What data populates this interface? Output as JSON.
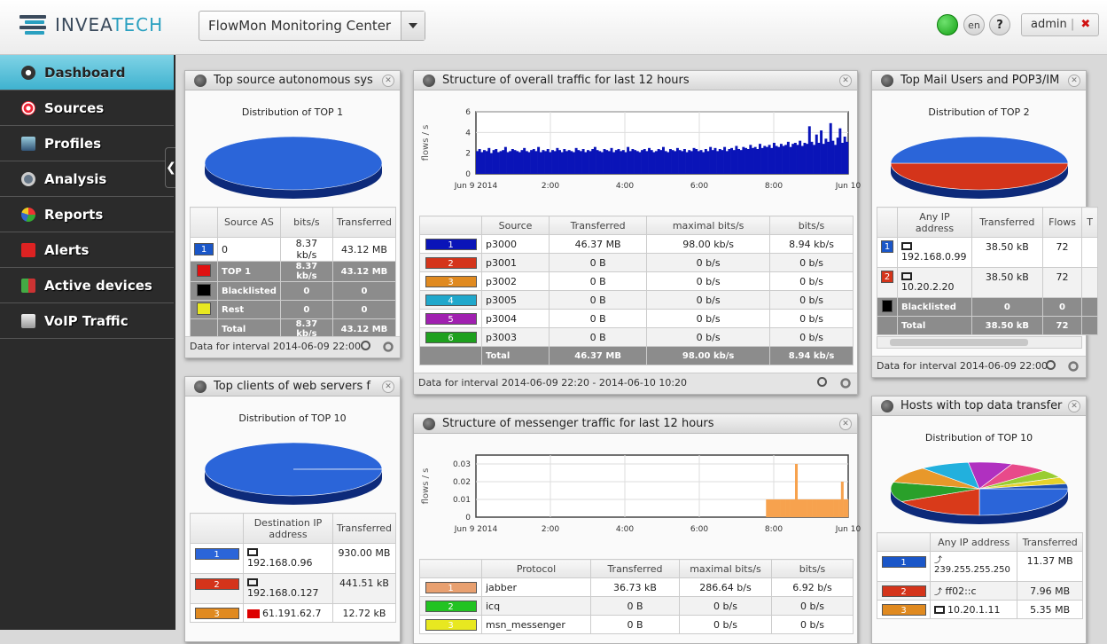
{
  "brand": {
    "name_a": "INVEA",
    "name_b": "TECH"
  },
  "app_selector": {
    "value": "FlowMon Monitoring Center"
  },
  "header": {
    "lang": "en",
    "help": "?",
    "user": "admin",
    "user_sep": "|",
    "logout": "✖"
  },
  "sidebar": {
    "items": [
      {
        "label": "Dashboard",
        "icon": "dashboard-icon"
      },
      {
        "label": "Sources",
        "icon": "target-icon"
      },
      {
        "label": "Profiles",
        "icon": "profiles-icon"
      },
      {
        "label": "Analysis",
        "icon": "magnifier-icon"
      },
      {
        "label": "Reports",
        "icon": "pie-chart-icon"
      },
      {
        "label": "Alerts",
        "icon": "alert-icon"
      },
      {
        "label": "Active devices",
        "icon": "devices-icon"
      },
      {
        "label": "VoIP Traffic",
        "icon": "phone-icon"
      }
    ]
  },
  "colors": {
    "blue": "#1a56c8",
    "red": "#d4341a",
    "orange": "#e08a20",
    "cyan": "#20a8cc",
    "purple": "#a020b0",
    "green": "#1ea01e",
    "pie_blue": "#2b65d9",
    "bar_navy": "#0a14b8",
    "bar_orange": "#f7a24e",
    "light_salmon": "#e8a070",
    "bright_green": "#22c322",
    "yellow": "#e8e820"
  },
  "panel_as": {
    "title": "Top source autonomous sys",
    "subtitle": "Distribution of TOP 1",
    "headers": [
      "",
      "Source AS",
      "bits/s",
      "Transferred"
    ],
    "rows": [
      {
        "rank": "1",
        "name": "0",
        "bits": "8.37 kb/s",
        "transferred": "43.12 MB"
      }
    ],
    "groups": [
      {
        "label": "TOP 1",
        "bits": "8.37 kb/s",
        "transferred": "43.12 MB"
      },
      {
        "label": "Blacklisted",
        "bits": "0",
        "transferred": "0"
      },
      {
        "label": "Rest",
        "bits": "0",
        "transferred": "0"
      },
      {
        "label": "Total",
        "bits": "8.37 kb/s",
        "transferred": "43.12 MB"
      }
    ],
    "footer": "Data for interval 2014-06-09 22:00"
  },
  "panel_web": {
    "title": "Top clients of web servers f",
    "subtitle": "Distribution of TOP 10",
    "headers": [
      "",
      "Destination IP address",
      "Transferred"
    ],
    "rows": [
      {
        "rank": "1",
        "ip": "192.168.0.96",
        "transferred": "930.00 MB"
      },
      {
        "rank": "2",
        "ip": "192.168.0.127",
        "transferred": "441.51 kB"
      },
      {
        "rank": "3",
        "ip": "61.191.62.7",
        "transferred": "12.72 kB"
      }
    ]
  },
  "panel_overall": {
    "title": "Structure of overall traffic for last 12 hours",
    "ylabel": "flows / s",
    "headers": [
      "",
      "Source",
      "Transferred",
      "maximal bits/s",
      "bits/s"
    ],
    "rows": [
      {
        "rank": "1",
        "name": "p3000",
        "transferred": "46.37 MB",
        "max": "98.00 kb/s",
        "bits": "8.94 kb/s"
      },
      {
        "rank": "2",
        "name": "p3001",
        "transferred": "0 B",
        "max": "0 b/s",
        "bits": "0 b/s"
      },
      {
        "rank": "3",
        "name": "p3002",
        "transferred": "0 B",
        "max": "0 b/s",
        "bits": "0 b/s"
      },
      {
        "rank": "4",
        "name": "p3005",
        "transferred": "0 B",
        "max": "0 b/s",
        "bits": "0 b/s"
      },
      {
        "rank": "5",
        "name": "p3004",
        "transferred": "0 B",
        "max": "0 b/s",
        "bits": "0 b/s"
      },
      {
        "rank": "6",
        "name": "p3003",
        "transferred": "0 B",
        "max": "0 b/s",
        "bits": "0 b/s"
      }
    ],
    "total": {
      "label": "Total",
      "transferred": "46.37 MB",
      "max": "98.00 kb/s",
      "bits": "8.94 kb/s"
    },
    "footer": "Data for interval 2014-06-09 22:20 - 2014-06-10 10:20"
  },
  "panel_messenger": {
    "title": "Structure of messenger traffic for last 12 hours",
    "ylabel": "flows / s",
    "headers": [
      "",
      "Protocol",
      "Transferred",
      "maximal bits/s",
      "bits/s"
    ],
    "rows": [
      {
        "rank": "1",
        "name": "jabber",
        "transferred": "36.73 kB",
        "max": "286.64 b/s",
        "bits": "6.92 b/s"
      },
      {
        "rank": "2",
        "name": "icq",
        "transferred": "0 B",
        "max": "0 b/s",
        "bits": "0 b/s"
      },
      {
        "rank": "3",
        "name": "msn_messenger",
        "transferred": "0 B",
        "max": "0 b/s",
        "bits": "0 b/s"
      }
    ]
  },
  "panel_mail": {
    "title": "Top Mail Users and POP3/IM",
    "subtitle": "Distribution of TOP 2",
    "headers": [
      "",
      "Any IP address",
      "Transferred",
      "Flows",
      "T"
    ],
    "rows": [
      {
        "rank": "1",
        "ip": "192.168.0.99",
        "transferred": "38.50 kB",
        "flows": "72"
      },
      {
        "rank": "2",
        "ip": "10.20.2.20",
        "transferred": "38.50 kB",
        "flows": "72"
      }
    ],
    "groups": [
      {
        "label": "Blacklisted",
        "transferred": "0",
        "flows": "0"
      },
      {
        "label": "Total",
        "transferred": "38.50 kB",
        "flows": "72"
      }
    ],
    "footer": "Data for interval 2014-06-09 22:00"
  },
  "panel_hosts": {
    "title": "Hosts with top data transfer",
    "subtitle": "Distribution of TOP 10",
    "headers": [
      "",
      "Any IP address",
      "Transferred"
    ],
    "rows": [
      {
        "rank": "1",
        "ip": "239.255.255.250",
        "transferred": "11.37 MB"
      },
      {
        "rank": "2",
        "ip": "ff02::c",
        "transferred": "7.96 MB"
      },
      {
        "rank": "3",
        "ip": "10.20.1.11",
        "transferred": "5.35 MB"
      }
    ]
  },
  "chart_data": [
    {
      "type": "bar",
      "name": "overall",
      "xlabel": "",
      "ylabel": "flows / s",
      "ylim": [
        0,
        6
      ],
      "yticks": [
        "0",
        "2",
        "4",
        "6"
      ],
      "xticks": [
        "Jun 9 2014",
        "2:00",
        "4:00",
        "6:00",
        "8:00",
        "Jun 10"
      ],
      "values": [
        2.2,
        2.4,
        2.1,
        2.3,
        2.2,
        2.5,
        2.0,
        2.3,
        2.4,
        2.1,
        2.2,
        2.3,
        2.6,
        2.1,
        2.2,
        2.4,
        2.3,
        2.2,
        2.1,
        2.3,
        2.5,
        2.2,
        2.1,
        2.3,
        2.4,
        2.2,
        2.6,
        2.1,
        2.3,
        2.2,
        2.4,
        2.1,
        2.3,
        2.2,
        2.5,
        2.3,
        2.1,
        2.4,
        2.2,
        2.3,
        2.2,
        2.1,
        2.5,
        2.3,
        2.2,
        2.4,
        2.1,
        2.3,
        2.2,
        2.4,
        2.6,
        2.3,
        2.2,
        2.1,
        2.4,
        2.3,
        2.2,
        2.5,
        2.1,
        2.3,
        2.4,
        2.2,
        2.3,
        2.1,
        2.6,
        2.2,
        2.4,
        2.3,
        2.2,
        2.1,
        2.3,
        2.4,
        2.2,
        2.5,
        2.3,
        2.1,
        2.2,
        2.4,
        2.3,
        2.6,
        2.2,
        2.1,
        2.4,
        2.3,
        2.2,
        2.5,
        2.3,
        2.2,
        2.4,
        2.1,
        2.3,
        2.2,
        2.5,
        2.4,
        2.2,
        2.3,
        2.1,
        2.4,
        2.2,
        2.6,
        2.3,
        2.5,
        2.2,
        2.4,
        2.3,
        2.6,
        2.2,
        2.4,
        2.5,
        2.3,
        2.7,
        2.4,
        2.3,
        2.6,
        2.5,
        2.4,
        2.8,
        2.5,
        2.6,
        2.4,
        2.9,
        2.5,
        2.7,
        2.6,
        2.8,
        2.5,
        3.0,
        2.7,
        2.6,
        2.9,
        2.7,
        2.8,
        3.1,
        2.6,
        2.9,
        3.0,
        2.8,
        3.2,
        2.7,
        3.0,
        2.9,
        4.6,
        3.1,
        2.8,
        3.8,
        3.0,
        4.2,
        2.9,
        3.4,
        3.1,
        4.9,
        3.2,
        2.8,
        3.5,
        4.4,
        3.0,
        3.6,
        3.1
      ]
    },
    {
      "type": "bar",
      "name": "messenger",
      "xlabel": "",
      "ylabel": "flows / s",
      "ylim": [
        0,
        0.035
      ],
      "yticks": [
        "0",
        "0.01",
        "0.02",
        "0.03"
      ],
      "xticks": [
        "Jun 9 2014",
        "2:00",
        "4:00",
        "6:00",
        "8:00",
        "Jun 10"
      ],
      "values": [
        0,
        0,
        0,
        0,
        0,
        0,
        0,
        0,
        0,
        0,
        0,
        0,
        0,
        0,
        0,
        0,
        0,
        0,
        0,
        0,
        0,
        0,
        0,
        0,
        0,
        0,
        0,
        0,
        0,
        0,
        0,
        0,
        0,
        0,
        0,
        0,
        0,
        0,
        0,
        0,
        0,
        0,
        0,
        0,
        0,
        0,
        0,
        0,
        0,
        0,
        0,
        0,
        0,
        0,
        0,
        0,
        0,
        0,
        0,
        0,
        0,
        0,
        0,
        0,
        0,
        0,
        0,
        0,
        0,
        0,
        0,
        0,
        0,
        0,
        0,
        0,
        0,
        0,
        0,
        0,
        0,
        0,
        0,
        0,
        0,
        0,
        0,
        0,
        0,
        0,
        0,
        0,
        0,
        0,
        0,
        0,
        0,
        0,
        0,
        0,
        0,
        0,
        0,
        0,
        0,
        0,
        0,
        0,
        0,
        0,
        0,
        0,
        0,
        0,
        0,
        0,
        0,
        0,
        0,
        0,
        0.01,
        0.01,
        0.01,
        0.01,
        0.01,
        0.01,
        0.01,
        0.01,
        0.01,
        0.01,
        0.01,
        0.01,
        0.03,
        0.01,
        0.01,
        0.01,
        0.01,
        0.01,
        0.01,
        0.01,
        0.01,
        0.01,
        0.01,
        0.01,
        0.01,
        0.01,
        0.01,
        0.01,
        0.01,
        0.01,
        0.01,
        0.02,
        0.01,
        0.01
      ]
    },
    {
      "type": "pie",
      "name": "as-pie",
      "values": [
        100
      ]
    },
    {
      "type": "pie",
      "name": "web-pie",
      "values": [
        99.9,
        0.1
      ]
    },
    {
      "type": "pie",
      "name": "mail-pie",
      "values": [
        50,
        50
      ]
    },
    {
      "type": "pie",
      "name": "hosts-pie",
      "values": [
        25,
        17,
        12,
        10,
        9,
        8,
        7,
        5,
        4,
        3
      ]
    }
  ]
}
